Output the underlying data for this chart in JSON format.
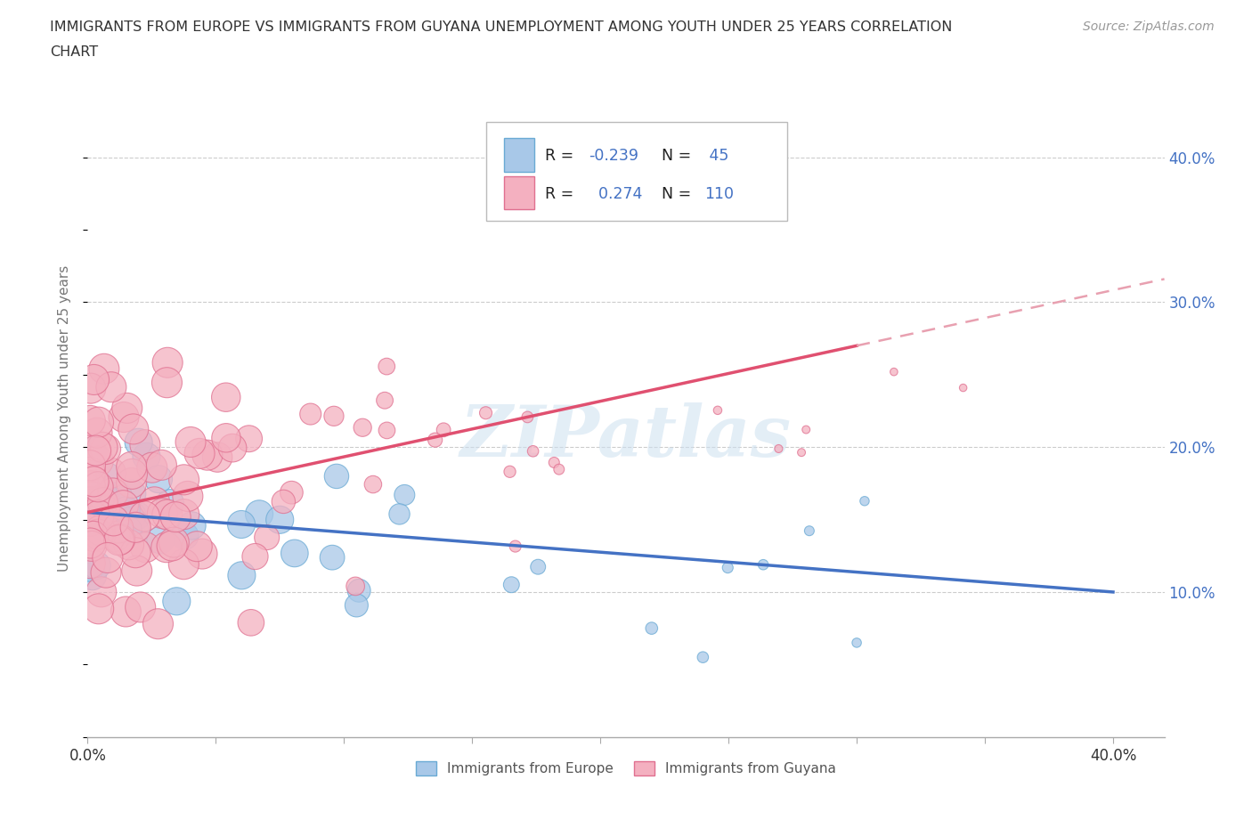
{
  "title_line1": "IMMIGRANTS FROM EUROPE VS IMMIGRANTS FROM GUYANA UNEMPLOYMENT AMONG YOUTH UNDER 25 YEARS CORRELATION",
  "title_line2": "CHART",
  "source": "Source: ZipAtlas.com",
  "ylabel": "Unemployment Among Youth under 25 years",
  "xlim": [
    0.0,
    0.42
  ],
  "ylim": [
    0.0,
    0.44
  ],
  "europe_R": -0.239,
  "europe_N": 45,
  "guyana_R": 0.274,
  "guyana_N": 110,
  "europe_color": "#a8c8e8",
  "europe_edge_color": "#6aaad4",
  "guyana_color": "#f4b0c0",
  "guyana_edge_color": "#e07090",
  "europe_line_color": "#4472c4",
  "guyana_line_color": "#e05070",
  "guyana_dash_color": "#e8a0b0",
  "watermark": "ZIPatlas",
  "grid_color": "#cccccc",
  "right_tick_color": "#4472c4"
}
